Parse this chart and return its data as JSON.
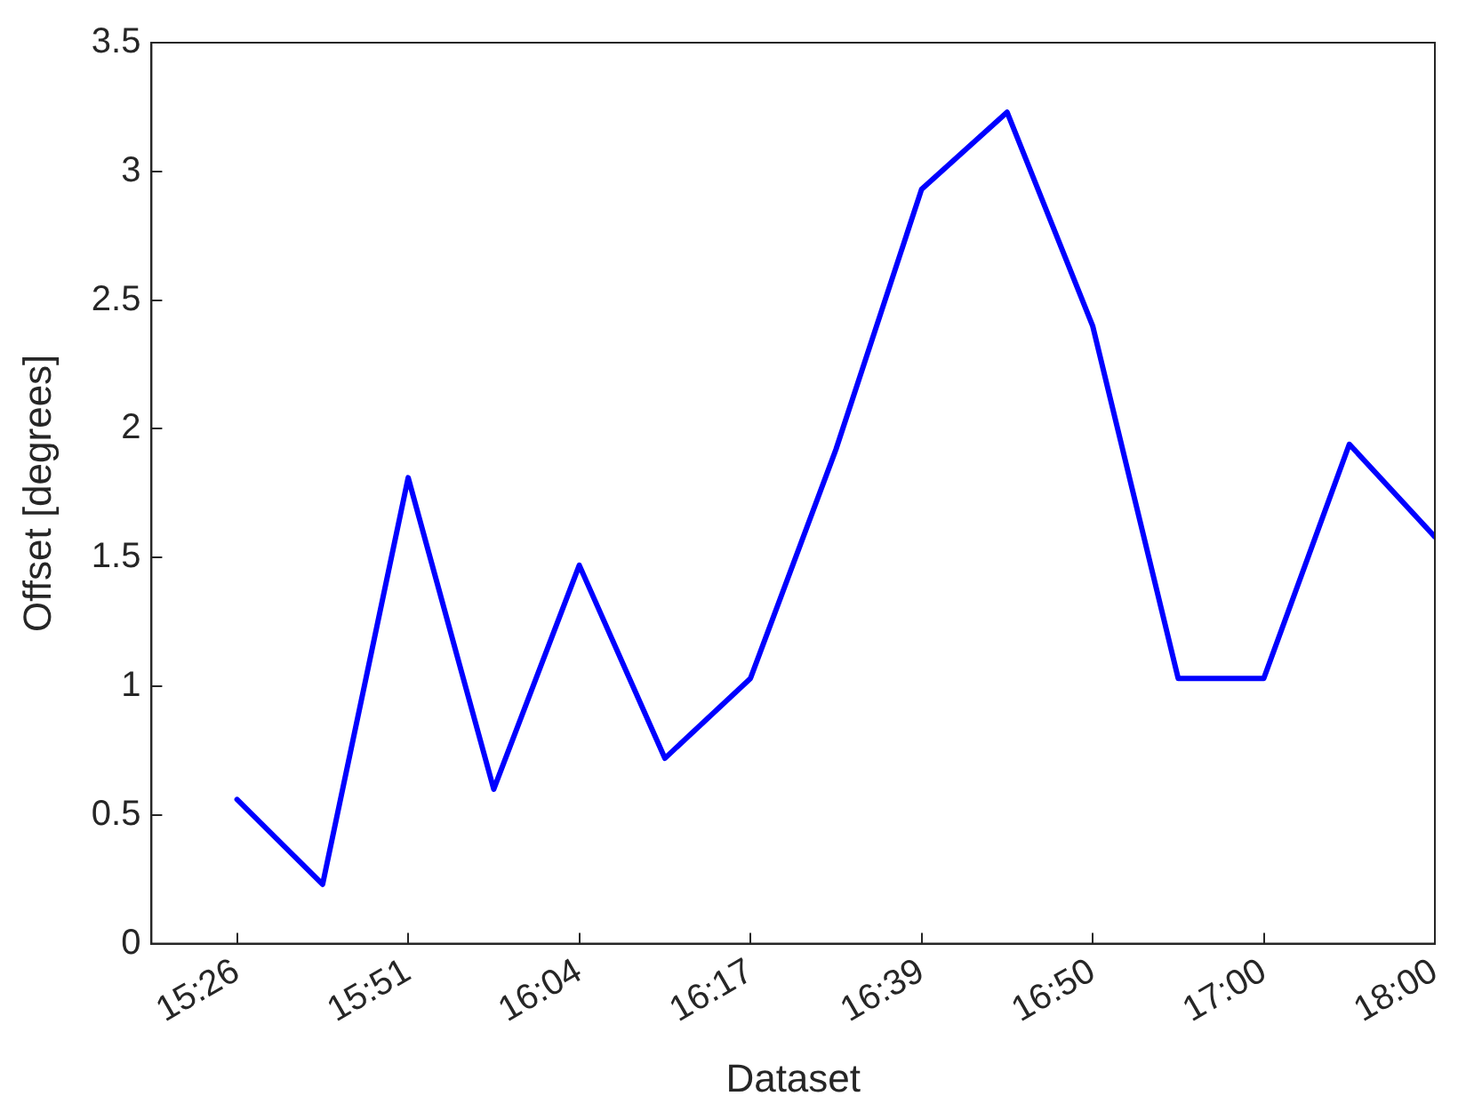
{
  "chart_data": {
    "type": "line",
    "xlabel": "Dataset",
    "ylabel": "Offset [degrees]",
    "categories": [
      "15:26",
      null,
      "15:51",
      null,
      "16:04",
      null,
      "16:17",
      null,
      "16:39",
      null,
      "16:50",
      null,
      "17:00",
      null,
      "18:00"
    ],
    "series": [
      {
        "color": "#0000ff",
        "values": [
          0.56,
          0.23,
          1.81,
          0.6,
          1.47,
          0.72,
          1.03,
          1.92,
          2.93,
          3.23,
          2.4,
          1.03,
          1.03,
          1.94,
          1.58
        ]
      }
    ],
    "ylim": [
      0,
      3.5
    ],
    "yticks": [
      0,
      0.5,
      1,
      1.5,
      2,
      2.5,
      3,
      3.5
    ],
    "grid": false,
    "legend": false,
    "marker": "none",
    "line_style": "solid"
  }
}
